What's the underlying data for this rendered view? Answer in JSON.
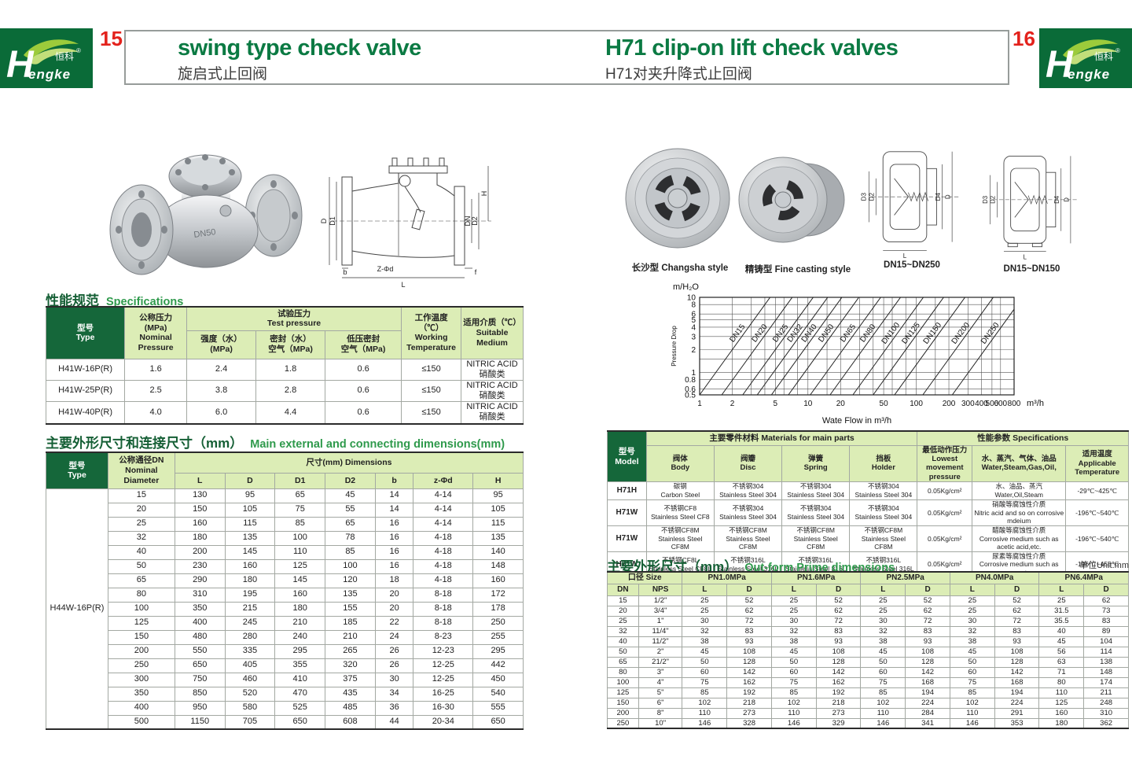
{
  "header": {
    "left": {
      "page_number": "15",
      "title": "swing type check valve",
      "subtitle": "旋启式止回阀"
    },
    "right": {
      "page_number": "16",
      "title": "H71 clip-on lift check valves",
      "subtitle": "H71对夹升降式止回阀"
    },
    "brand": {
      "h": "H",
      "rest": "engke",
      "cn": "恒科",
      "reg": "®"
    }
  },
  "colors": {
    "brand_green": "#0a6b38",
    "title_green": "#0b7a43",
    "accent_red": "#e3221c",
    "table_head_light": "#dcedb6",
    "table_head_dark": "#15673a"
  },
  "left_page": {
    "specs_heading": {
      "cn": "性能规范",
      "en": "Specifications"
    },
    "specs_table": {
      "widths": [
        "16.5%",
        "13%",
        "14.5%",
        "14.5%",
        "16%",
        "12.5%",
        "13%"
      ],
      "head": [
        [
          {
            "t": "型号\nType",
            "rs": 2,
            "cls": "dk"
          },
          {
            "t": "公称压力\n(MPa)\nNominal\nPressure",
            "rs": 2
          },
          {
            "t": "试验压力\nTest pressure",
            "cs": 3
          },
          {
            "t": "工作温度（℃）\nWorking\nTemperature",
            "rs": 2
          },
          {
            "t": "适用介质（℃）\nSuitable\nMedium",
            "rs": 2
          }
        ],
        [
          {
            "t": "强度（水）\n(MPa)"
          },
          {
            "t": "密封（水）\n空气（MPa)"
          },
          {
            "t": "低压密封\n空气（MPa)"
          }
        ]
      ],
      "body": [
        [
          "H41W-16P(R)",
          "1.6",
          "2.4",
          "1.8",
          "0.6",
          "≤150",
          "NITRIC ACID\n硝酸类"
        ],
        [
          "H41W-25P(R)",
          "2.5",
          "3.8",
          "2.8",
          "0.6",
          "≤150",
          "NITRIC ACID\n硝酸类"
        ],
        [
          "H41W-40P(R)",
          "4.0",
          "6.0",
          "4.4",
          "0.6",
          "≤150",
          "NITRIC ACID\n硝酸类"
        ]
      ]
    },
    "dims_heading": {
      "cn": "主要外形尺寸和连接尺寸（mm）",
      "en": "Main external and connecting dimensions(mm)"
    },
    "dims_table": {
      "widths": [
        "13%",
        "14%",
        "10.5%",
        "10.5%",
        "10.5%",
        "10.5%",
        "8%",
        "12.5%",
        "10.5%"
      ],
      "head": [
        [
          {
            "t": "型号\nType",
            "rs": 2,
            "cls": "dk"
          },
          {
            "t": "公称通径DN\nNominal\nDiameter",
            "rs": 2
          },
          {
            "t": "尺寸(mm) Dimensions",
            "cs": 7
          }
        ],
        [
          {
            "t": "L"
          },
          {
            "t": "D"
          },
          {
            "t": "D1"
          },
          {
            "t": "D2"
          },
          {
            "t": "b"
          },
          {
            "t": "z-Φd"
          },
          {
            "t": "H"
          }
        ]
      ],
      "body": [
        [
          {
            "t": "H44W-16P(R)",
            "rs": 17,
            "cls": "typecol"
          },
          "15",
          "130",
          "95",
          "65",
          "45",
          "14",
          "4-14",
          "95"
        ],
        [
          "20",
          "150",
          "105",
          "75",
          "55",
          "14",
          "4-14",
          "105"
        ],
        [
          "25",
          "160",
          "115",
          "85",
          "65",
          "16",
          "4-14",
          "115"
        ],
        [
          "32",
          "180",
          "135",
          "100",
          "78",
          "16",
          "4-18",
          "135"
        ],
        [
          "40",
          "200",
          "145",
          "110",
          "85",
          "16",
          "4-18",
          "140"
        ],
        [
          "50",
          "230",
          "160",
          "125",
          "100",
          "16",
          "4-18",
          "148"
        ],
        [
          "65",
          "290",
          "180",
          "145",
          "120",
          "18",
          "4-18",
          "160"
        ],
        [
          "80",
          "310",
          "195",
          "160",
          "135",
          "20",
          "8-18",
          "172"
        ],
        [
          "100",
          "350",
          "215",
          "180",
          "155",
          "20",
          "8-18",
          "178"
        ],
        [
          "125",
          "400",
          "245",
          "210",
          "185",
          "22",
          "8-18",
          "250"
        ],
        [
          "150",
          "480",
          "280",
          "240",
          "210",
          "24",
          "8-23",
          "255"
        ],
        [
          "200",
          "550",
          "335",
          "295",
          "265",
          "26",
          "12-23",
          "295"
        ],
        [
          "250",
          "650",
          "405",
          "355",
          "320",
          "26",
          "12-25",
          "442"
        ],
        [
          "300",
          "750",
          "460",
          "410",
          "375",
          "30",
          "12-25",
          "450"
        ],
        [
          "350",
          "850",
          "520",
          "470",
          "435",
          "34",
          "16-25",
          "540"
        ],
        [
          "400",
          "950",
          "580",
          "525",
          "485",
          "36",
          "16-30",
          "555"
        ],
        [
          "500",
          "1150",
          "705",
          "650",
          "608",
          "44",
          "20-34",
          "650"
        ]
      ]
    },
    "drawing_labels": {
      "D": "D",
      "D1": "D1",
      "DN": "DN",
      "D2": "D2",
      "H": "H",
      "zd": "Z-Φd",
      "b": "b",
      "L": "L",
      "f": "f"
    }
  },
  "right_page": {
    "photo_captions": [
      "长沙型 Changsha style",
      "精铸型 Fine casting style"
    ],
    "drawing_captions": [
      "DN15~DN250",
      "DN15~DN150"
    ],
    "drawing_labels": {
      "D3": "D3",
      "D2": "D2",
      "D4": "D4",
      "D": "D",
      "L": "L"
    },
    "materials_table": {
      "widths": [
        "7.5%",
        "13%",
        "13%",
        "13%",
        "13%",
        "10.5%",
        "18%",
        "12%"
      ],
      "head": [
        [
          {
            "t": "型号\nModel",
            "rs": 2,
            "cls": "dk"
          },
          {
            "t": "主要零件材料 Materials for main parts",
            "cs": 4
          },
          {
            "t": "性能参数 Specifications",
            "cs": 3
          }
        ],
        [
          {
            "t": "阀体\nBody"
          },
          {
            "t": "阀瓣\nDisc"
          },
          {
            "t": "弹簧\nSpring"
          },
          {
            "t": "挡板\nHolder"
          },
          {
            "t": "最低动作压力\nLowest movement\npressure"
          },
          {
            "t": "水、蒸汽、气体、油品\nWater,Steam,Gas,Oil,"
          },
          {
            "t": "适用温度\nApplicable\nTemperature"
          }
        ]
      ],
      "body": [
        [
          {
            "t": "H71H",
            "cls": "model"
          },
          "碳钢\nCarbon Steel",
          "不锈钢304\nStainless Steel 304",
          "不锈钢304\nStainless Steel 304",
          "不锈钢304\nStainless Steel 304",
          "0.05Kg/cm²",
          "水、油品、蒸汽\nWater,Oil,Steam",
          "-29℃~425℃"
        ],
        [
          {
            "t": "H71W",
            "cls": "model"
          },
          "不锈钢CF8\nStainless Steel CF8",
          "不锈钢304\nStainless Steel 304",
          "不锈钢304\nStainless Steel 304",
          "不锈钢304\nStainless Steel 304",
          "0.05Kg/cm²",
          "硝酸等腐蚀性介质\nNitric acid and so on corrosive mdeium",
          "-196℃~540℃"
        ],
        [
          {
            "t": "H71W",
            "cls": "model"
          },
          "不锈钢CF8M\nStainless Steel CF8M",
          "不锈钢CF8M\nStainless Steel CF8M",
          "不锈钢CF8M\nStainless Steel CF8M",
          "不锈钢CF8M\nStainless Steel CF8M",
          "0.05Kg/cm²",
          "醋酸等腐蚀性介质\nCorrosive medium such as acetic acid,etc.",
          "-196℃~540℃"
        ],
        [
          {
            "t": "H71W",
            "cls": "model"
          },
          "不锈钢CF8L\nStainless Steel CF8L",
          "不锈钢316L\nStainless Steel 316L",
          "不锈钢316L\nStainless Steel 316L",
          "不锈钢316L\nStainless Steel 316L",
          "0.05Kg/cm²",
          "尿素等腐蚀性介质\nCorrosive medium such as urea,etc.",
          "-196℃~455℃"
        ]
      ]
    },
    "outform_heading": {
      "cn": "主要外形尺寸（mm）",
      "en": "Out-form Prime dimensions",
      "unit": "单位Unit:mm"
    },
    "outform_table": {
      "widths": [
        "6%",
        "8.4%",
        "8.56%",
        "8.56%",
        "8.56%",
        "8.56%",
        "8.56%",
        "8.56%",
        "8.56%",
        "8.56%",
        "8.56%",
        "8.56%"
      ],
      "head": [
        [
          {
            "t": "口径 Size",
            "cs": 2
          },
          {
            "t": "PN1.0MPa",
            "cs": 2
          },
          {
            "t": "PN1.6MPa",
            "cs": 2
          },
          {
            "t": "PN2.5MPa",
            "cs": 2
          },
          {
            "t": "PN4.0MPa",
            "cs": 2
          },
          {
            "t": "PN6.4MPa",
            "cs": 2
          }
        ],
        [
          {
            "t": "DN"
          },
          {
            "t": "NPS"
          },
          {
            "t": "L"
          },
          {
            "t": "D"
          },
          {
            "t": "L"
          },
          {
            "t": "D"
          },
          {
            "t": "L"
          },
          {
            "t": "D"
          },
          {
            "t": "L"
          },
          {
            "t": "D"
          },
          {
            "t": "L"
          },
          {
            "t": "D"
          }
        ]
      ],
      "body": [
        [
          "15",
          "1/2\"",
          "25",
          "52",
          "25",
          "52",
          "25",
          "52",
          "25",
          "52",
          "25",
          "62"
        ],
        [
          "20",
          "3/4\"",
          "25",
          "62",
          "25",
          "62",
          "25",
          "62",
          "25",
          "62",
          "31.5",
          "73"
        ],
        [
          "25",
          "1\"",
          "30",
          "72",
          "30",
          "72",
          "30",
          "72",
          "30",
          "72",
          "35.5",
          "83"
        ],
        [
          "32",
          "11/4\"",
          "32",
          "83",
          "32",
          "83",
          "32",
          "83",
          "32",
          "83",
          "40",
          "89"
        ],
        [
          "40",
          "11/2\"",
          "38",
          "93",
          "38",
          "93",
          "38",
          "93",
          "38",
          "93",
          "45",
          "104"
        ],
        [
          "50",
          "2\"",
          "45",
          "108",
          "45",
          "108",
          "45",
          "108",
          "45",
          "108",
          "56",
          "114"
        ],
        [
          "65",
          "21/2\"",
          "50",
          "128",
          "50",
          "128",
          "50",
          "128",
          "50",
          "128",
          "63",
          "138"
        ],
        [
          "80",
          "3\"",
          "60",
          "142",
          "60",
          "142",
          "60",
          "142",
          "60",
          "142",
          "71",
          "148"
        ],
        [
          "100",
          "4\"",
          "75",
          "162",
          "75",
          "162",
          "75",
          "168",
          "75",
          "168",
          "80",
          "174"
        ],
        [
          "125",
          "5\"",
          "85",
          "192",
          "85",
          "192",
          "85",
          "194",
          "85",
          "194",
          "110",
          "211"
        ],
        [
          "150",
          "6\"",
          "102",
          "218",
          "102",
          "218",
          "102",
          "224",
          "102",
          "224",
          "125",
          "248"
        ],
        [
          "200",
          "8\"",
          "110",
          "273",
          "110",
          "273",
          "110",
          "284",
          "110",
          "291",
          "160",
          "310"
        ],
        [
          "250",
          "10\"",
          "146",
          "328",
          "146",
          "329",
          "146",
          "341",
          "146",
          "353",
          "180",
          "362"
        ]
      ]
    }
  },
  "chart_data": {
    "type": "line",
    "title": "",
    "ylabel": "Pressure Drop",
    "y_unit_label": "m/H₂O",
    "xlabel": "Wate Flow in m³/h",
    "x_unit_label": "m³/h",
    "x_scale": "log",
    "y_scale": "log",
    "xlim": [
      1,
      800
    ],
    "ylim": [
      0.5,
      10
    ],
    "x_ticks": [
      1,
      2,
      5,
      10,
      20,
      50,
      100,
      200,
      300,
      400,
      500,
      600,
      800
    ],
    "y_ticks": [
      10,
      8,
      6,
      5,
      4,
      3,
      2,
      1,
      0.8,
      0.6,
      0.5
    ],
    "x_grid": [
      1,
      2,
      3,
      4,
      5,
      6,
      8,
      10,
      15,
      20,
      30,
      40,
      50,
      60,
      80,
      100,
      150,
      200,
      300,
      400,
      500,
      600,
      800
    ],
    "y_grid": [
      0.5,
      0.6,
      0.8,
      1,
      1.5,
      2,
      3,
      4,
      5,
      6,
      8,
      10
    ],
    "grid": true,
    "legend": "labels-on-lines",
    "series_relation": "pressure drop = 0.5*(Q/x_at_ymin)^2 ; each DN line spans y=0.5 to y=10 m/H2O",
    "series": [
      {
        "name": "DN15",
        "x_at_ymin": 1.0
      },
      {
        "name": "DN20",
        "x_at_ymin": 1.6
      },
      {
        "name": "DN25",
        "x_at_ymin": 2.5
      },
      {
        "name": "DN32",
        "x_at_ymin": 3.4
      },
      {
        "name": "DN40",
        "x_at_ymin": 4.6
      },
      {
        "name": "DN50",
        "x_at_ymin": 6.6
      },
      {
        "name": "DN65",
        "x_at_ymin": 10.5
      },
      {
        "name": "DN80",
        "x_at_ymin": 16
      },
      {
        "name": "DN100",
        "x_at_ymin": 26
      },
      {
        "name": "DN125",
        "x_at_ymin": 40
      },
      {
        "name": "DN150",
        "x_at_ymin": 63
      },
      {
        "name": "DN200",
        "x_at_ymin": 115
      },
      {
        "name": "DN250",
        "x_at_ymin": 215
      }
    ]
  }
}
